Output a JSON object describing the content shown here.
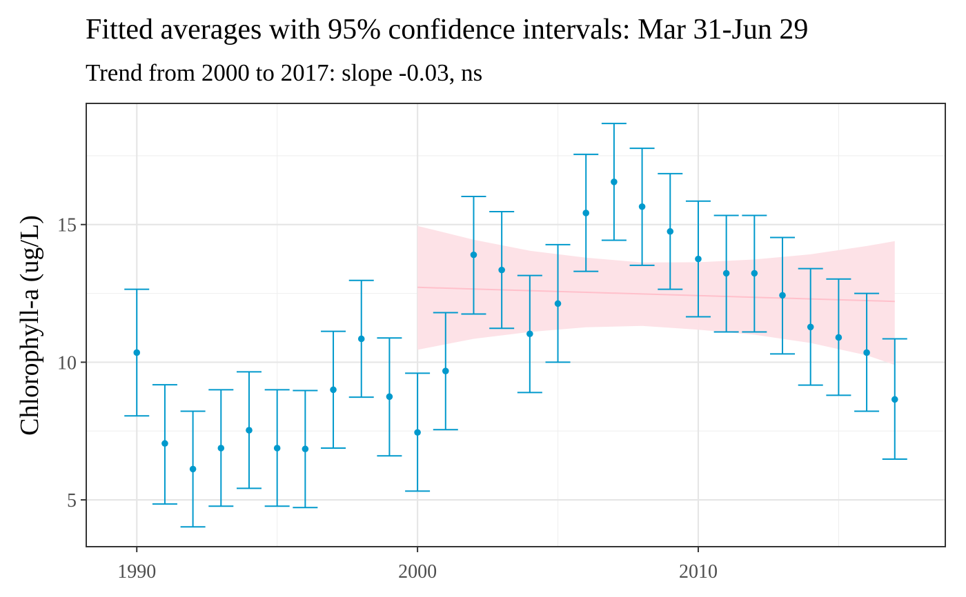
{
  "chart_data": {
    "type": "scatter",
    "title": "Fitted averages with 95% confidence intervals: Mar 31-Jun 29",
    "subtitle": "Trend from 2000 to 2017: slope -0.03, ns",
    "xlabel": "",
    "ylabel": "Chlorophyll-a (ug/L)",
    "xlim": [
      1988.2,
      2018.8
    ],
    "ylim": [
      3.3,
      19.4
    ],
    "x_ticks": [
      1990,
      2000,
      2010
    ],
    "y_ticks": [
      5,
      10,
      15
    ],
    "grid": true,
    "point_color": "#0099cc",
    "trend_color": "#ffc0cb",
    "band_color": "#fde0e6",
    "series": [
      {
        "x": [
          1990,
          1991,
          1992,
          1993,
          1994,
          1995,
          1996,
          1997,
          1998,
          1999,
          2000,
          2001,
          2002,
          2003,
          2004,
          2005,
          2006,
          2007,
          2008,
          2009,
          2010,
          2011,
          2012,
          2013,
          2014,
          2015,
          2016,
          2017
        ],
        "y": [
          10.35,
          7.05,
          6.12,
          6.88,
          7.53,
          6.88,
          6.85,
          9.0,
          10.85,
          8.75,
          7.45,
          9.68,
          13.9,
          13.35,
          11.03,
          12.13,
          15.42,
          16.55,
          15.65,
          14.75,
          13.75,
          13.23,
          13.23,
          12.43,
          11.28,
          10.9,
          10.35,
          8.65
        ],
        "lower": [
          8.05,
          4.85,
          4.02,
          4.77,
          5.42,
          4.77,
          4.72,
          6.88,
          8.73,
          6.6,
          5.32,
          7.55,
          11.75,
          11.23,
          8.9,
          10.0,
          13.3,
          14.43,
          13.52,
          12.65,
          11.65,
          11.1,
          11.1,
          10.3,
          9.17,
          8.8,
          8.22,
          6.48
        ],
        "upper": [
          12.65,
          9.18,
          8.22,
          9.0,
          9.65,
          9.0,
          8.97,
          11.12,
          12.97,
          10.88,
          9.6,
          11.8,
          16.02,
          15.47,
          13.15,
          14.27,
          17.55,
          18.67,
          17.77,
          16.85,
          15.85,
          15.33,
          15.33,
          14.53,
          13.4,
          13.02,
          12.5,
          10.85
        ]
      }
    ],
    "trend": {
      "x": [
        2000,
        2002,
        2004,
        2006,
        2008,
        2010,
        2012,
        2014,
        2016,
        2017
      ],
      "fit": [
        12.72,
        12.66,
        12.6,
        12.54,
        12.48,
        12.42,
        12.36,
        12.3,
        12.24,
        12.21
      ],
      "lower": [
        10.45,
        10.85,
        11.1,
        11.27,
        11.32,
        11.18,
        11.0,
        10.7,
        10.25,
        9.9
      ],
      "upper": [
        14.95,
        14.45,
        14.05,
        13.8,
        13.62,
        13.63,
        13.73,
        13.92,
        14.22,
        14.4
      ]
    }
  }
}
